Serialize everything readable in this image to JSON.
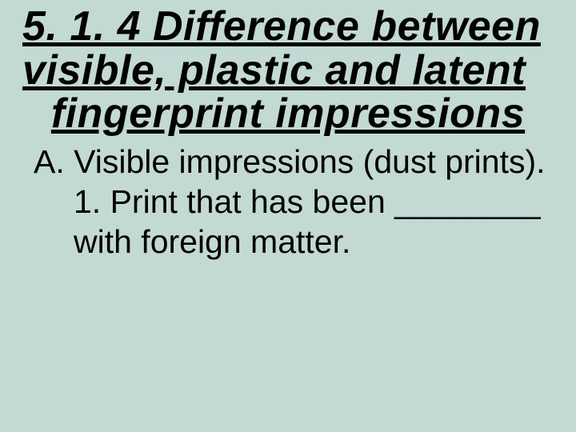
{
  "colors": {
    "background": "#c2d9d4",
    "text": "#000000"
  },
  "typography": {
    "title_font": "Arial Black, italic, bold, underline",
    "title_fontsize_pt": 39,
    "body_font": "Arial",
    "body_fontsize_pt": 31
  },
  "title": {
    "line1": "5. 1. 4 Difference between",
    "line2": "visible, plastic and latent",
    "line3": "fingerprint impressions"
  },
  "body": {
    "itemA": "A.  Visible impressions (dust prints).",
    "item1_line1": "1. Print that has been ________",
    "item1_line2": "with foreign matter."
  }
}
